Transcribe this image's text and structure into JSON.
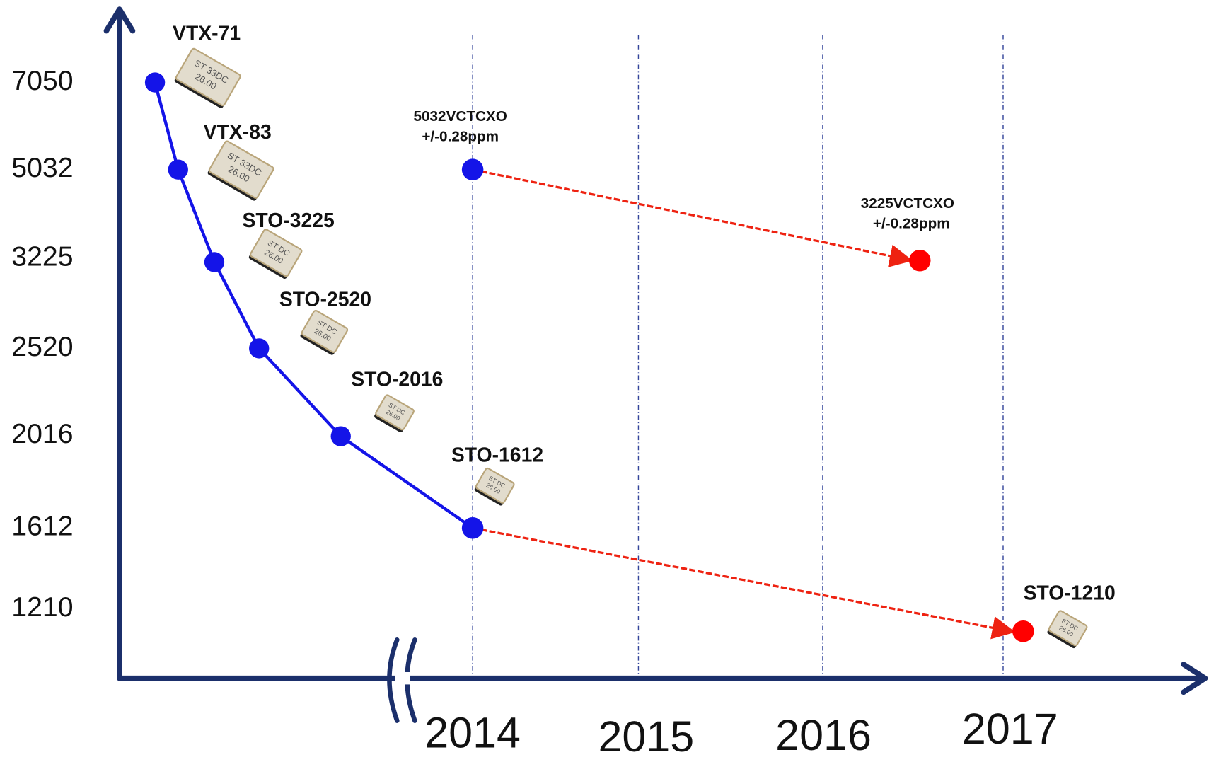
{
  "y_labels": [
    "7050",
    "5032",
    "3225",
    "2520",
    "2016",
    "1612",
    "1210"
  ],
  "x_labels": [
    "2014",
    "2015",
    "2016",
    "2017"
  ],
  "parts": [
    "VTX-71",
    "VTX-83",
    "STO-3225",
    "STO-2520",
    "STO-2016",
    "STO-1612",
    "STO-1210"
  ],
  "chips": [
    [
      "ST 33DC",
      "26.00"
    ],
    [
      "ST 33DC",
      "26.00"
    ],
    [
      "ST DC",
      "26.00"
    ],
    [
      "ST DC",
      "26.00"
    ],
    [
      "ST DC",
      "26.00"
    ],
    [
      "ST DC",
      "26.00"
    ],
    [
      "ST DC",
      "26.00"
    ]
  ],
  "vctcxo": [
    [
      "5032VCTCXO",
      "+/-0.28ppm"
    ],
    [
      "3225VCTCXO",
      "+/-0.28ppm"
    ]
  ]
}
